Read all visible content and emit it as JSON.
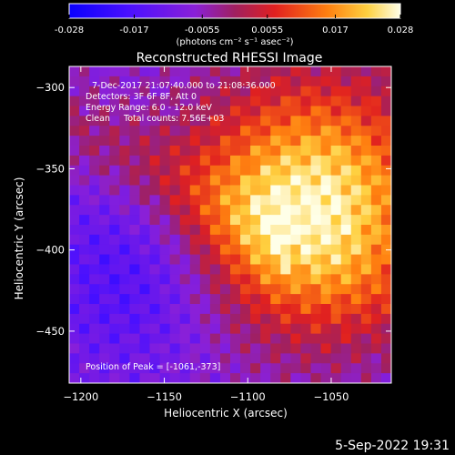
{
  "colorbar": {
    "ticks": [
      "-0.028",
      "-0.017",
      "-0.0055",
      "0.0055",
      "0.017",
      "0.028"
    ],
    "unit_label": "(photons cm⁻² s⁻¹ asec⁻²)",
    "min": -0.028,
    "max": 0.028
  },
  "plot": {
    "title": "Reconstructed RHESSI Image",
    "annotation_lines": [
      "7-Dec-2017 21:07:40.000 to 21:08:36.000",
      "Detectors: 3F 6F 8F, Att 0",
      "Energy Range: 6.0 - 12.0 keV",
      "Clean     Total counts: 7.56E+03"
    ],
    "peak_text": "Position of Peak = [-1061,-373]"
  },
  "footer": {
    "timestamp": "5-Sep-2022 19:31"
  },
  "chart_data": {
    "type": "heatmap",
    "title": "Reconstructed RHESSI Image",
    "xlabel": "Heliocentric X (arcsec)",
    "ylabel": "Heliocentric Y (arcsec)",
    "x_ticks": [
      -1200,
      -1150,
      -1100,
      -1050
    ],
    "y_ticks": [
      -300,
      -350,
      -400,
      -450
    ],
    "xlim": [
      -1207,
      -1014
    ],
    "ylim": [
      -482,
      -287
    ],
    "peak": {
      "x": -1061,
      "y": -373
    },
    "value_range": [
      -0.028,
      0.028
    ],
    "colormap": "RHESSI blue-purple-red-yellow-white"
  }
}
